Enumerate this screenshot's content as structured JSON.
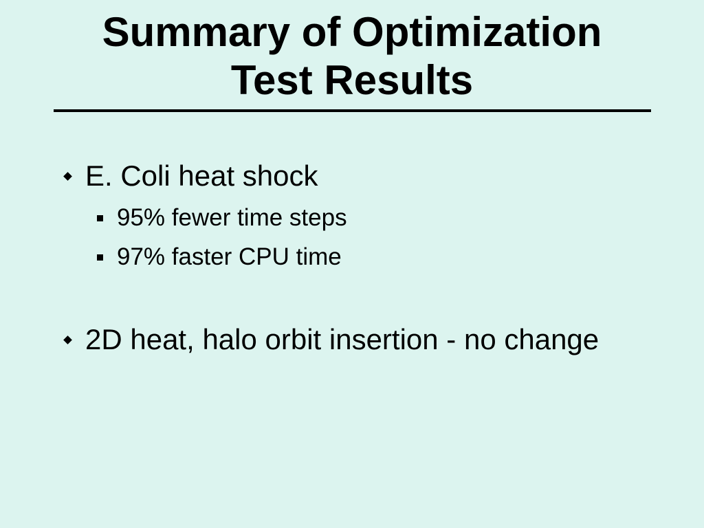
{
  "slide": {
    "title_line1": "Summary of Optimization",
    "title_line2": "Test Results",
    "bullets": [
      {
        "text": "E. Coli heat shock",
        "sub": [
          "95% fewer time steps",
          "97% faster CPU time"
        ]
      },
      {
        "text": "2D heat, halo orbit insertion - no change",
        "sub": []
      }
    ]
  },
  "colors": {
    "background": "#dcf4ef",
    "text": "#000000"
  },
  "icons": {
    "level1_bullet": "diamond-bullet-icon",
    "level2_bullet": "square-bullet-icon"
  }
}
